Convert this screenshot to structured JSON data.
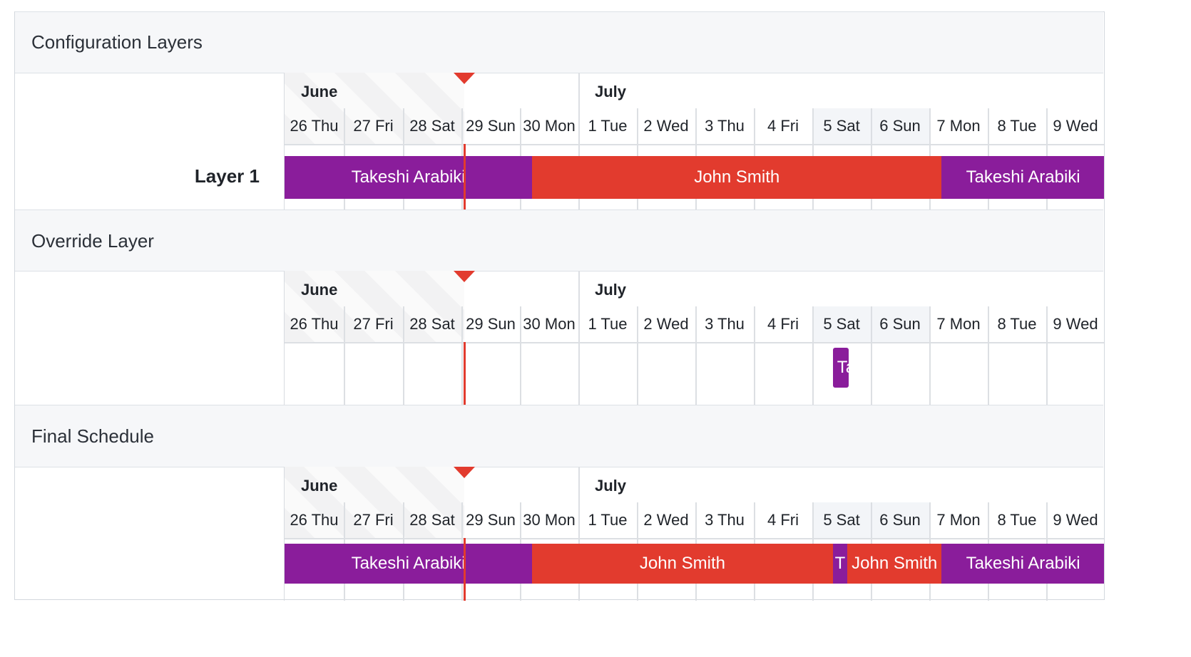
{
  "colors": {
    "purple": "#8a1d9b",
    "red": "#e23b2e",
    "now_marker": "#e23b2e"
  },
  "sections": [
    {
      "id": "configuration-layers",
      "title": "Configuration Layers",
      "row_label": "Layer 1",
      "months": [
        "June",
        "July"
      ],
      "days": [
        "26 Thu",
        "27 Fri",
        "28 Sat",
        "29 Sun",
        "30 Mon",
        "1 Tue",
        "2 Wed",
        "3 Thu",
        "4 Fri",
        "5 Sat",
        "6 Sun",
        "7 Mon",
        "8 Tue",
        "9 Wed"
      ],
      "shifts": [
        {
          "name": "Takeshi Arabiki",
          "color": "purple",
          "start_day": 0,
          "end_day": 4.21
        },
        {
          "name": "John Smith",
          "color": "red",
          "start_day": 4.21,
          "end_day": 11.21
        },
        {
          "name": "Takeshi Arabiki",
          "color": "purple",
          "start_day": 11.21,
          "end_day": 14
        }
      ]
    },
    {
      "id": "override-layer",
      "title": "Override Layer",
      "row_label": "",
      "months": [
        "June",
        "July"
      ],
      "days": [
        "26 Thu",
        "27 Fri",
        "28 Sat",
        "29 Sun",
        "30 Mon",
        "1 Tue",
        "2 Wed",
        "3 Thu",
        "4 Fri",
        "5 Sat",
        "6 Sun",
        "7 Mon",
        "8 Tue",
        "9 Wed"
      ],
      "shifts": [
        {
          "name": "Ta",
          "color": "purple",
          "start_day": 9.35,
          "end_day": 9.6,
          "small": true
        }
      ]
    },
    {
      "id": "final-schedule",
      "title": "Final Schedule",
      "row_label": "",
      "months": [
        "June",
        "July"
      ],
      "days": [
        "26 Thu",
        "27 Fri",
        "28 Sat",
        "29 Sun",
        "30 Mon",
        "1 Tue",
        "2 Wed",
        "3 Thu",
        "4 Fri",
        "5 Sat",
        "6 Sun",
        "7 Mon",
        "8 Tue",
        "9 Wed"
      ],
      "shifts": [
        {
          "name": "Takeshi Arabiki",
          "color": "purple",
          "start_day": 0,
          "end_day": 4.21
        },
        {
          "name": "John Smith",
          "color": "red",
          "start_day": 4.21,
          "end_day": 9.35
        },
        {
          "name": "T",
          "color": "purple",
          "start_day": 9.35,
          "end_day": 9.6
        },
        {
          "name": "John Smith",
          "color": "red",
          "start_day": 9.6,
          "end_day": 11.21
        },
        {
          "name": "Takeshi Arabiki",
          "color": "purple",
          "start_day": 11.21,
          "end_day": 14
        }
      ]
    }
  ]
}
